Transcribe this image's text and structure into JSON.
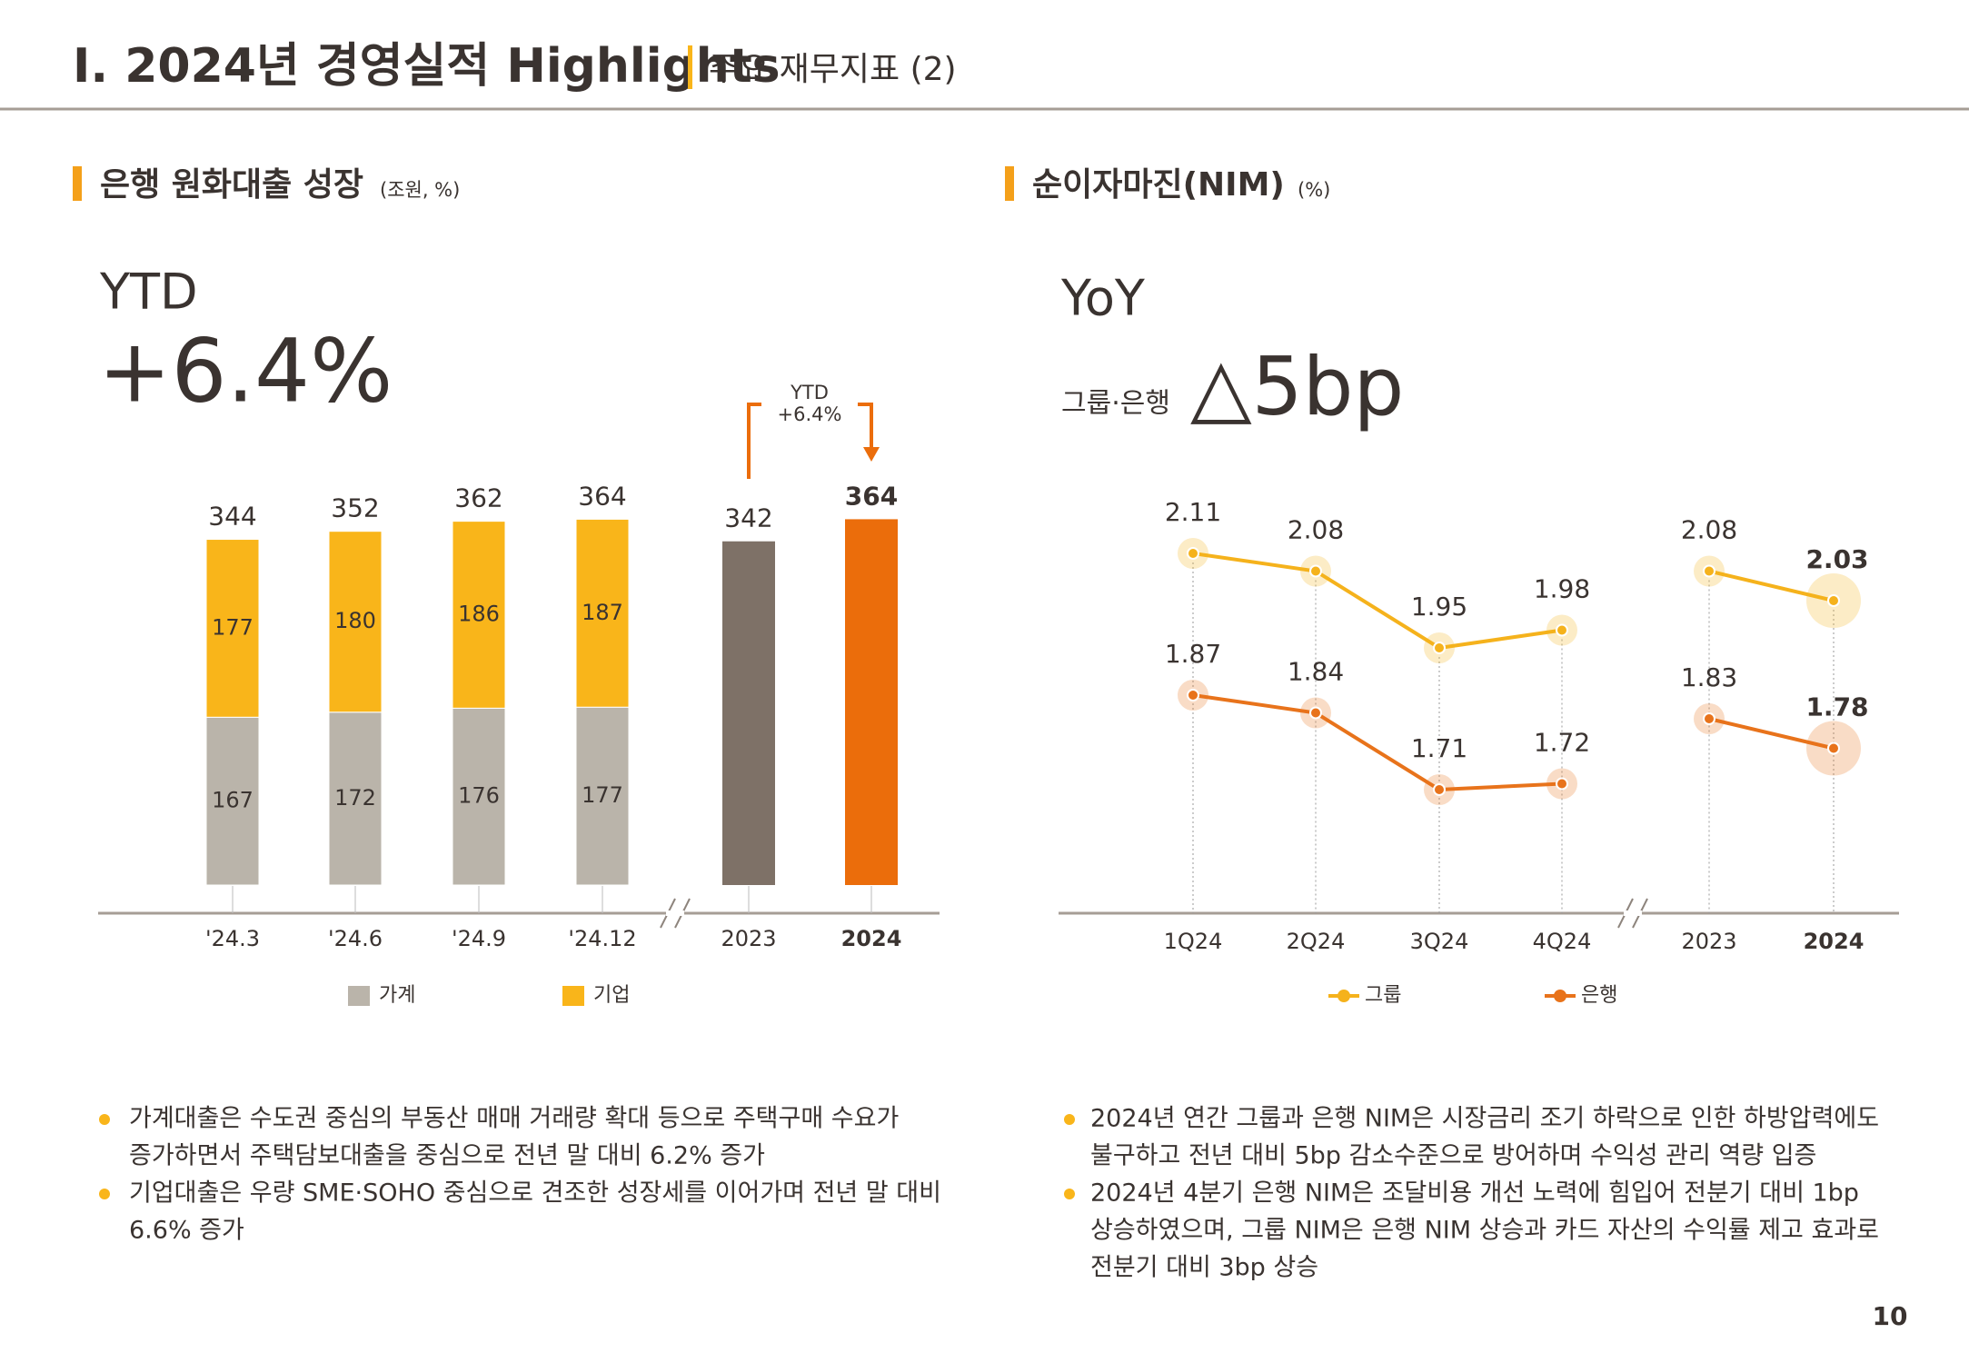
{
  "header": {
    "title": "I. 2024년 경영실적 Highlights",
    "subtitle": "주요 재무지표 (2)"
  },
  "chart_data": [
    {
      "type": "bar",
      "title": "은행 원화대출 성장",
      "unit": "(조원, %)",
      "headline_label": "YTD",
      "headline_value": "+6.4%",
      "arrow_label": [
        "YTD",
        "+6.4%"
      ],
      "categories": [
        "'24.3",
        "'24.6",
        "'24.9",
        "'24.12",
        "2023",
        "2024"
      ],
      "series": [
        {
          "name": "가계",
          "color": "#bab4aa",
          "values": [
            167,
            172,
            176,
            177,
            null,
            null
          ]
        },
        {
          "name": "기업",
          "color": "#f9b51a",
          "values": [
            177,
            180,
            186,
            187,
            null,
            null
          ]
        }
      ],
      "totals": [
        344,
        352,
        362,
        364,
        342,
        364
      ],
      "total_colors": [
        null,
        null,
        null,
        null,
        "#7e7167",
        "#eb6d0b"
      ],
      "axis_break_before": 4
    },
    {
      "type": "line",
      "title": "순이자마진(NIM)",
      "unit": "(%)",
      "headline_label": "YoY",
      "headline_prefix": "그룹·은행",
      "headline_value": "△5bp",
      "categories": [
        "1Q24",
        "2Q24",
        "3Q24",
        "4Q24",
        "2023",
        "2024"
      ],
      "series": [
        {
          "name": "그룹",
          "color": "#f5b21c",
          "values": [
            2.11,
            2.08,
            1.95,
            1.98,
            2.08,
            2.03
          ]
        },
        {
          "name": "은행",
          "color": "#e8731b",
          "values": [
            1.87,
            1.84,
            1.71,
            1.72,
            1.83,
            1.78
          ]
        }
      ],
      "axis_break_before": 4
    }
  ],
  "bullets_left": [
    [
      "가계대출은 수도권 중심의 부동산 매매 거래량 확대 등으로 주택구매 수요가",
      "증가하면서 주택담보대출을 중심으로 전년 말 대비 6.2% 증가"
    ],
    [
      "기업대출은 우량 SME·SOHO 중심으로 견조한 성장세를 이어가며 전년 말 대비",
      "6.6% 증가"
    ]
  ],
  "bullets_right": [
    [
      "2024년 연간 그룹과 은행 NIM은 시장금리 조기 하락으로 인한 하방압력에도",
      "불구하고 전년 대비 5bp 감소수준으로 방어하며 수익성 관리 역량 입증"
    ],
    [
      "2024년 4분기 은행 NIM은 조달비용 개선 노력에 힘입어 전분기 대비 1bp",
      "상승하였으며, 그룹 NIM은 은행 NIM 상승과 카드 자산의 수익률 제고 효과로",
      "전분기 대비 3bp 상승"
    ]
  ],
  "page_number": "10"
}
